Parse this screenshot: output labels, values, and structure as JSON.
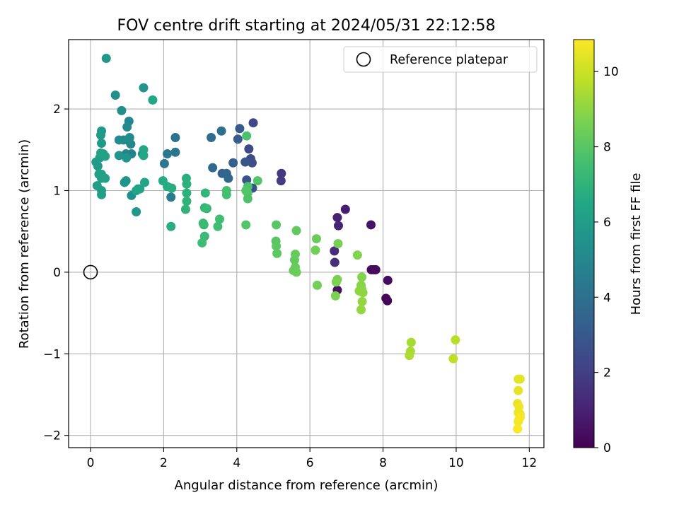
{
  "chart_data": {
    "type": "scatter",
    "title": "FOV centre drift starting at 2024/05/31 22:12:58",
    "xlabel": "Angular distance from reference (arcmin)",
    "ylabel": "Rotation from reference (arcmin)",
    "xlim": [
      -0.6,
      12.4
    ],
    "ylim": [
      -2.15,
      2.85
    ],
    "xticks": [
      0,
      2,
      4,
      6,
      8,
      10,
      12
    ],
    "xtick_labels": [
      "0",
      "2",
      "4",
      "6",
      "8",
      "10",
      "12"
    ],
    "yticks": [
      -2,
      -1,
      0,
      1,
      2
    ],
    "ytick_labels": [
      "−2",
      "−1",
      "0",
      "1",
      "2"
    ],
    "grid": true,
    "legend": {
      "position": "top-right",
      "label": "Reference platepar"
    },
    "reference_point": {
      "x": 0,
      "y": 0
    },
    "colorbar": {
      "label": "Hours from first FF file",
      "colormap": "viridis",
      "range": [
        0,
        10.85
      ],
      "ticks": [
        0,
        2,
        4,
        6,
        8,
        10
      ],
      "tick_labels": [
        "0",
        "2",
        "4",
        "6",
        "8",
        "10"
      ]
    },
    "points": [
      [
        7.75,
        0.03,
        0.2
      ],
      [
        7.68,
        0.03,
        0.25
      ],
      [
        7.8,
        0.03,
        0.3
      ],
      [
        8.12,
        -0.35,
        0.1
      ],
      [
        8.08,
        -0.32,
        0.15
      ],
      [
        8.13,
        -0.1,
        0.35
      ],
      [
        6.75,
        -0.22,
        0.5
      ],
      [
        7.67,
        0.58,
        0.6
      ],
      [
        6.97,
        0.77,
        0.9
      ],
      [
        6.75,
        0.67,
        1.0
      ],
      [
        6.78,
        0.57,
        1.1
      ],
      [
        6.67,
        0.26,
        1.3
      ],
      [
        6.68,
        0.12,
        1.4
      ],
      [
        5.22,
        1.21,
        1.8
      ],
      [
        5.21,
        1.12,
        1.9
      ],
      [
        4.45,
        1.83,
        2.3
      ],
      [
        4.33,
        1.51,
        2.4
      ],
      [
        4.38,
        1.39,
        2.5
      ],
      [
        4.42,
        1.34,
        2.6
      ],
      [
        4.43,
        1.03,
        2.7
      ],
      [
        4.27,
        1.13,
        2.8
      ],
      [
        4.23,
        1.35,
        2.9
      ],
      [
        4.08,
        1.76,
        3.0
      ],
      [
        4.03,
        1.63,
        3.1
      ],
      [
        3.9,
        1.34,
        3.3
      ],
      [
        3.6,
        1.21,
        3.4
      ],
      [
        3.72,
        1.21,
        3.5
      ],
      [
        3.77,
        1.15,
        3.6
      ],
      [
        3.34,
        1.28,
        3.7
      ],
      [
        3.3,
        1.65,
        3.8
      ],
      [
        3.58,
        1.73,
        3.9
      ],
      [
        2.32,
        1.65,
        4.1
      ],
      [
        2.32,
        1.47,
        4.2
      ],
      [
        2.1,
        1.45,
        4.3
      ],
      [
        2.02,
        1.33,
        4.4
      ],
      [
        2.2,
        0.92,
        4.5
      ],
      [
        1.42,
        1.45,
        4.7
      ],
      [
        1.12,
        1.45,
        4.8
      ],
      [
        0.97,
        1.45,
        4.9
      ],
      [
        1.0,
        1.42,
        4.9
      ],
      [
        1.1,
        1.57,
        5.0
      ],
      [
        1.05,
        1.85,
        5.0
      ],
      [
        1.0,
        1.78,
        5.1
      ],
      [
        1.07,
        1.65,
        5.1
      ],
      [
        0.78,
        1.62,
        5.2
      ],
      [
        0.9,
        1.62,
        5.2
      ],
      [
        1.0,
        1.62,
        5.3
      ],
      [
        0.85,
        1.98,
        5.3
      ],
      [
        0.68,
        2.17,
        5.4
      ],
      [
        1.12,
        0.94,
        5.4
      ],
      [
        0.93,
        1.1,
        5.5
      ],
      [
        0.97,
        1.12,
        5.5
      ],
      [
        0.78,
        1.43,
        5.6
      ],
      [
        0.98,
        1.4,
        5.6
      ],
      [
        1.45,
        2.26,
        5.6
      ],
      [
        0.43,
        2.62,
        5.7
      ],
      [
        1.25,
        0.74,
        5.7
      ],
      [
        1.3,
        1.02,
        5.8
      ],
      [
        0.3,
        1.58,
        5.8
      ],
      [
        0.3,
        1.73,
        5.8
      ],
      [
        0.28,
        1.68,
        5.9
      ],
      [
        0.15,
        1.35,
        5.9
      ],
      [
        0.2,
        1.3,
        5.9
      ],
      [
        0.25,
        1.4,
        6.0
      ],
      [
        0.3,
        1.2,
        6.0
      ],
      [
        0.3,
        1.0,
        6.0
      ],
      [
        0.18,
        1.06,
        6.0
      ],
      [
        0.3,
        0.95,
        6.1
      ],
      [
        0.35,
        1.45,
        6.1
      ],
      [
        0.23,
        1.2,
        6.1
      ],
      [
        0.3,
        1.15,
        6.1
      ],
      [
        0.4,
        1.15,
        6.2
      ],
      [
        0.28,
        1.46,
        6.2
      ],
      [
        0.4,
        1.42,
        6.2
      ],
      [
        1.48,
        1.1,
        6.3
      ],
      [
        1.25,
        1.0,
        6.3
      ],
      [
        1.35,
        1.02,
        6.3
      ],
      [
        1.45,
        1.43,
        6.4
      ],
      [
        1.45,
        1.5,
        6.4
      ],
      [
        1.7,
        2.11,
        6.5
      ],
      [
        1.98,
        1.12,
        6.6
      ],
      [
        2.1,
        1.05,
        6.6
      ],
      [
        2.22,
        1.03,
        6.7
      ],
      [
        2.2,
        0.56,
        6.8
      ],
      [
        2.62,
        1.15,
        6.8
      ],
      [
        2.63,
        1.08,
        6.9
      ],
      [
        2.63,
        0.97,
        6.9
      ],
      [
        2.63,
        0.87,
        7.0
      ],
      [
        2.6,
        0.77,
        7.0
      ],
      [
        3.14,
        0.97,
        7.1
      ],
      [
        3.12,
        0.79,
        7.1
      ],
      [
        3.18,
        0.78,
        7.2
      ],
      [
        3.1,
        0.58,
        7.3
      ],
      [
        3.08,
        0.6,
        7.3
      ],
      [
        3.12,
        0.44,
        7.3
      ],
      [
        3.05,
        0.36,
        7.4
      ],
      [
        3.53,
        0.65,
        7.5
      ],
      [
        3.48,
        0.56,
        7.5
      ],
      [
        3.72,
        1.0,
        7.6
      ],
      [
        3.72,
        0.95,
        7.6
      ],
      [
        4.27,
        1.67,
        7.7
      ],
      [
        4.3,
        1.05,
        7.7
      ],
      [
        4.3,
        0.97,
        7.8
      ],
      [
        4.3,
        0.9,
        7.8
      ],
      [
        4.25,
        0.58,
        7.9
      ],
      [
        4.57,
        1.12,
        7.9
      ],
      [
        4.25,
        1.0,
        7.9
      ],
      [
        5.08,
        0.58,
        8.0
      ],
      [
        5.07,
        0.38,
        8.0
      ],
      [
        5.08,
        0.32,
        8.1
      ],
      [
        5.1,
        0.23,
        8.1
      ],
      [
        5.63,
        0.51,
        8.2
      ],
      [
        5.58,
        0.15,
        8.2
      ],
      [
        5.6,
        0.22,
        8.3
      ],
      [
        5.6,
        0.06,
        8.3
      ],
      [
        5.55,
        0.02,
        8.3
      ],
      [
        5.63,
        0.0,
        8.4
      ],
      [
        6.18,
        0.41,
        8.4
      ],
      [
        6.15,
        0.27,
        8.5
      ],
      [
        6.2,
        -0.16,
        8.5
      ],
      [
        6.77,
        0.35,
        8.6
      ],
      [
        6.75,
        -0.09,
        8.6
      ],
      [
        6.72,
        -0.12,
        8.7
      ],
      [
        6.7,
        -0.29,
        8.7
      ],
      [
        7.3,
        0.21,
        8.8
      ],
      [
        7.42,
        -0.06,
        8.8
      ],
      [
        7.4,
        -0.16,
        8.9
      ],
      [
        7.42,
        -0.21,
        8.9
      ],
      [
        7.35,
        -0.23,
        9.0
      ],
      [
        7.45,
        -0.25,
        9.0
      ],
      [
        7.43,
        -0.36,
        9.1
      ],
      [
        7.4,
        -0.46,
        9.1
      ],
      [
        8.77,
        -0.86,
        9.4
      ],
      [
        8.75,
        -0.97,
        9.4
      ],
      [
        8.72,
        -1.02,
        9.5
      ],
      [
        9.98,
        -0.83,
        9.7
      ],
      [
        9.92,
        -1.06,
        9.8
      ],
      [
        11.7,
        -1.31,
        10.4
      ],
      [
        11.75,
        -1.31,
        10.4
      ],
      [
        11.7,
        -1.45,
        10.5
      ],
      [
        11.68,
        -1.61,
        10.5
      ],
      [
        11.72,
        -1.65,
        10.6
      ],
      [
        11.7,
        -1.72,
        10.6
      ],
      [
        11.75,
        -1.74,
        10.6
      ],
      [
        11.75,
        -1.78,
        10.7
      ],
      [
        11.7,
        -1.83,
        10.7
      ],
      [
        11.72,
        -1.8,
        10.75
      ],
      [
        11.68,
        -1.92,
        10.8
      ]
    ]
  }
}
